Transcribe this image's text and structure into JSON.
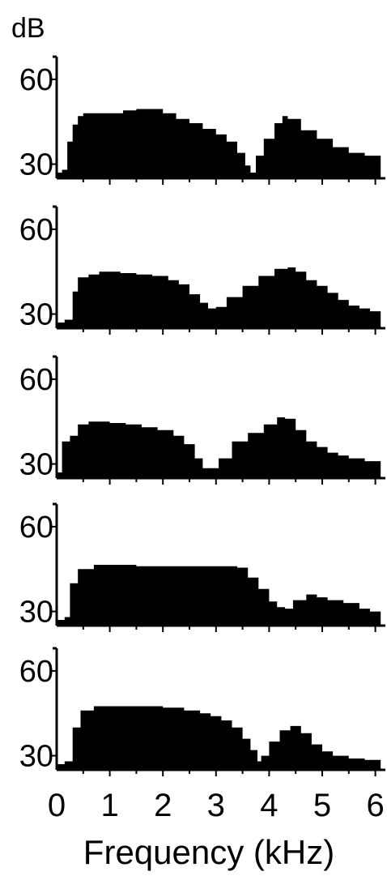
{
  "colors": {
    "fill": "#000000",
    "axis": "#000000",
    "background": "#ffffff"
  },
  "yunit": "dB",
  "xlabel": "Frequency (kHz)",
  "ytick_labels": [
    "60",
    "30"
  ],
  "xtick_labels": [
    "0",
    "1",
    "2",
    "3",
    "4",
    "5",
    "6"
  ],
  "chart_data": [
    {
      "type": "area",
      "x": [
        0,
        0.1,
        0.2,
        0.3,
        0.4,
        0.5,
        0.75,
        1.0,
        1.25,
        1.5,
        1.75,
        2.0,
        2.25,
        2.5,
        2.75,
        3.0,
        3.2,
        3.4,
        3.55,
        3.65,
        3.75,
        3.9,
        4.1,
        4.25,
        4.35,
        4.6,
        4.9,
        5.2,
        5.5,
        5.8,
        6.1
      ],
      "y": [
        27,
        28,
        38,
        44,
        47,
        48,
        48,
        48,
        49,
        49.5,
        49.5,
        48,
        46,
        44.5,
        42.5,
        40.5,
        38,
        34,
        29.5,
        27,
        33,
        39,
        44.5,
        47,
        46,
        42,
        39,
        36,
        34,
        33,
        31
      ],
      "ylim": [
        25,
        68
      ],
      "xlim": [
        0,
        6.2
      ]
    },
    {
      "type": "area",
      "x": [
        0,
        0.15,
        0.3,
        0.4,
        0.6,
        0.8,
        1.0,
        1.2,
        1.5,
        1.8,
        2.1,
        2.3,
        2.5,
        2.7,
        2.85,
        3.0,
        3.2,
        3.5,
        3.8,
        4.1,
        4.35,
        4.5,
        4.7,
        4.9,
        5.1,
        5.3,
        5.5,
        5.7,
        5.9,
        6.1
      ],
      "y": [
        27,
        28,
        38,
        43,
        44,
        45,
        45,
        44.5,
        44,
        43.5,
        42,
        40.5,
        37,
        34,
        32,
        32.5,
        36,
        40,
        43.5,
        46,
        46.5,
        45,
        42,
        40,
        37.5,
        35,
        33,
        32,
        31,
        30
      ],
      "ylim": [
        25,
        68
      ],
      "xlim": [
        0,
        6.2
      ]
    },
    {
      "type": "area",
      "x": [
        0,
        0.1,
        0.25,
        0.4,
        0.6,
        0.8,
        1.0,
        1.3,
        1.6,
        1.9,
        2.2,
        2.4,
        2.6,
        2.75,
        2.9,
        3.05,
        3.3,
        3.6,
        3.9,
        4.15,
        4.3,
        4.5,
        4.7,
        4.9,
        5.1,
        5.3,
        5.5,
        5.8,
        6.1
      ],
      "y": [
        27,
        38,
        40,
        44,
        45,
        45,
        44.5,
        44,
        43,
        42,
        40,
        37,
        32,
        28.5,
        28.5,
        32,
        38,
        41,
        44,
        46.5,
        46,
        42,
        38,
        36,
        34,
        33,
        32,
        31,
        29
      ],
      "ylim": [
        25,
        68
      ],
      "xlim": [
        0,
        6.2
      ]
    },
    {
      "type": "area",
      "x": [
        0,
        0.15,
        0.25,
        0.4,
        0.7,
        1.0,
        1.5,
        2.0,
        2.5,
        3.0,
        3.4,
        3.6,
        3.8,
        4.0,
        4.15,
        4.3,
        4.45,
        4.7,
        4.9,
        5.1,
        5.4,
        5.7,
        5.9,
        6.1
      ],
      "y": [
        27,
        28,
        40,
        45,
        46.5,
        46.5,
        46,
        46,
        46,
        46,
        45.5,
        42,
        38,
        33.5,
        31.5,
        31,
        34,
        36,
        35,
        34,
        33,
        31,
        30,
        29
      ],
      "ylim": [
        25,
        68
      ],
      "xlim": [
        0,
        6.2
      ]
    },
    {
      "type": "area",
      "x": [
        0,
        0.15,
        0.3,
        0.45,
        0.7,
        1.0,
        1.5,
        2.0,
        2.4,
        2.7,
        2.9,
        3.1,
        3.3,
        3.5,
        3.65,
        3.78,
        3.85,
        4.0,
        4.2,
        4.4,
        4.6,
        4.8,
        5.0,
        5.2,
        5.5,
        5.8,
        6.1
      ],
      "y": [
        27,
        28,
        40,
        46,
        47.5,
        47.5,
        47.5,
        47,
        46,
        45,
        44,
        42.5,
        40,
        36,
        32,
        28,
        30,
        35,
        39,
        40.5,
        38,
        34,
        31.5,
        30,
        29,
        28.5,
        28
      ],
      "ylim": [
        25,
        68
      ],
      "xlim": [
        0,
        6.2
      ]
    }
  ]
}
